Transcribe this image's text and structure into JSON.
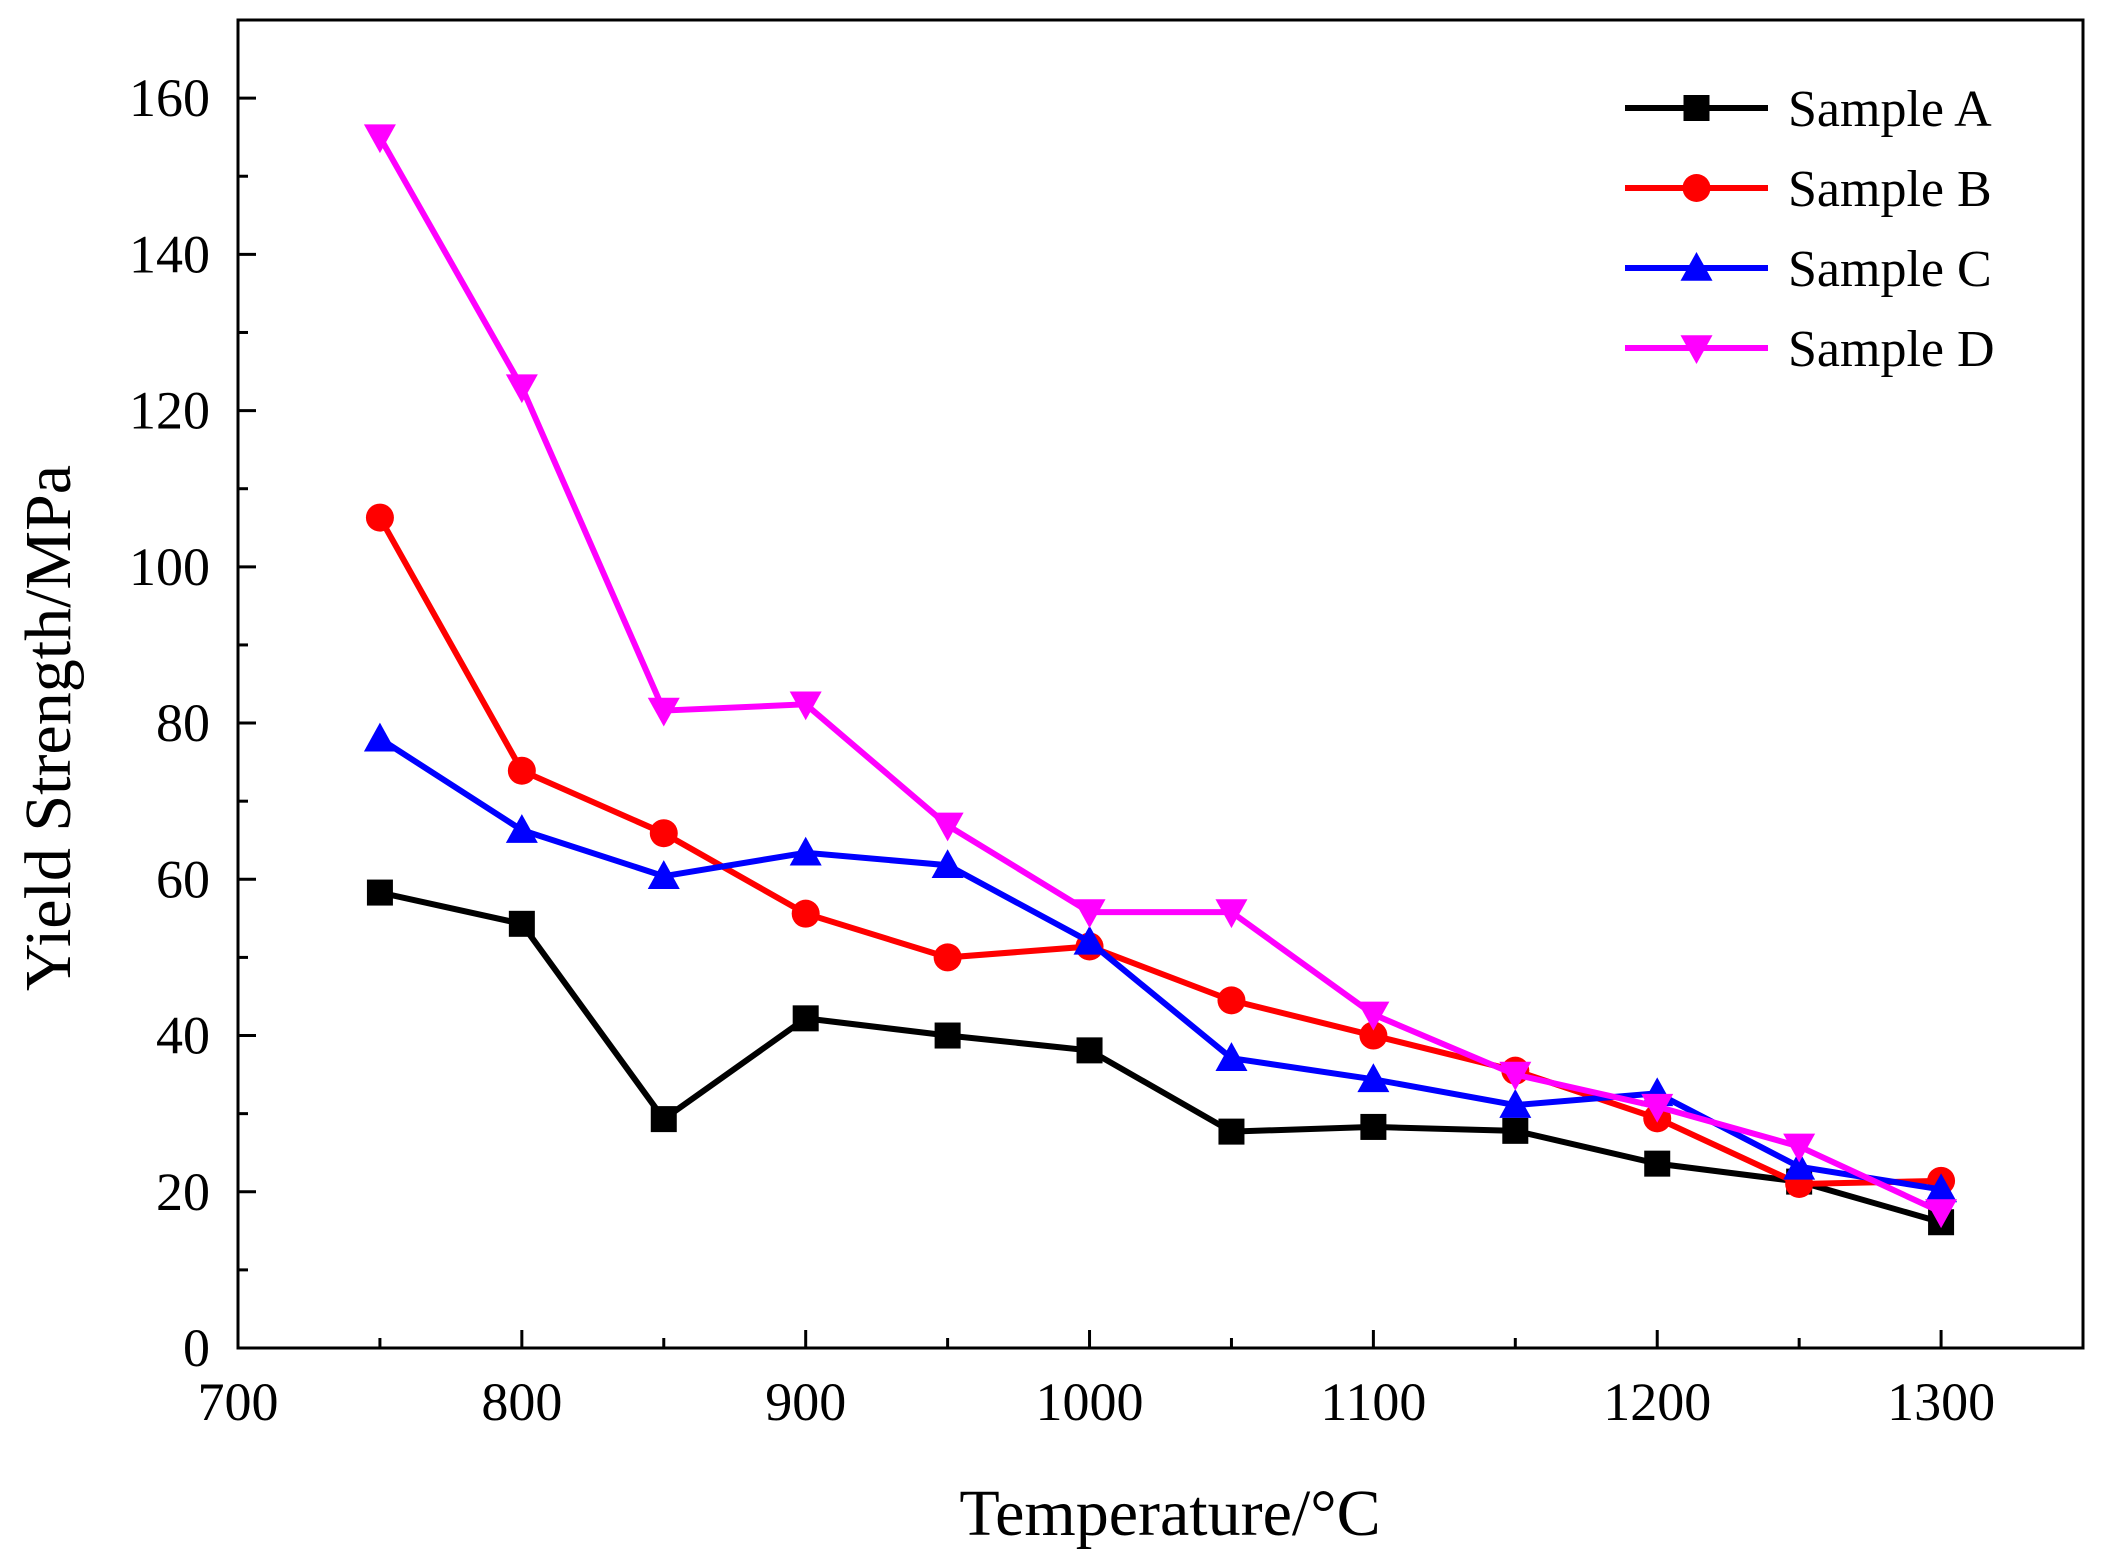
{
  "chart_data": {
    "type": "line",
    "title": "",
    "xlabel": "Temperature/°C",
    "ylabel": "Yield Strength/MPa",
    "xlim": [
      700,
      1350
    ],
    "ylim": [
      0,
      170
    ],
    "x_ticks": [
      700,
      800,
      900,
      1000,
      1100,
      1200,
      1300
    ],
    "x_tick_labels": [
      "700",
      "800",
      "900",
      "1000",
      "1100",
      "1200",
      "1300"
    ],
    "y_ticks": [
      0,
      20,
      40,
      60,
      80,
      100,
      120,
      140,
      160
    ],
    "y_tick_labels": [
      "0",
      "20",
      "40",
      "60",
      "80",
      "100",
      "120",
      "140",
      "160"
    ],
    "grid": false,
    "legend_position": "top-right",
    "x": [
      750,
      800,
      850,
      900,
      950,
      1000,
      1050,
      1100,
      1150,
      1200,
      1250,
      1300
    ],
    "series": [
      {
        "name": "Sample A",
        "color": "#000000",
        "marker": "square",
        "values": [
          58.3,
          54.3,
          29.3,
          42.2,
          40.0,
          38.1,
          27.7,
          28.3,
          27.8,
          23.6,
          21.3,
          16.1
        ]
      },
      {
        "name": "Sample B",
        "color": "#ff0000",
        "marker": "circle",
        "values": [
          106.3,
          73.9,
          65.9,
          55.6,
          50.0,
          51.4,
          44.5,
          40.0,
          35.5,
          29.4,
          21.0,
          21.4
        ]
      },
      {
        "name": "Sample C",
        "color": "#0000ff",
        "marker": "triangle-up",
        "values": [
          78.0,
          66.3,
          60.4,
          63.4,
          61.8,
          52.0,
          37.1,
          34.4,
          31.1,
          32.6,
          23.2,
          20.3
        ]
      },
      {
        "name": "Sample D",
        "color": "#ff00ff",
        "marker": "triangle-down",
        "values": [
          155.0,
          123.0,
          81.6,
          82.4,
          66.9,
          55.8,
          55.8,
          42.7,
          35.0,
          30.9,
          25.8,
          17.4
        ]
      }
    ]
  }
}
